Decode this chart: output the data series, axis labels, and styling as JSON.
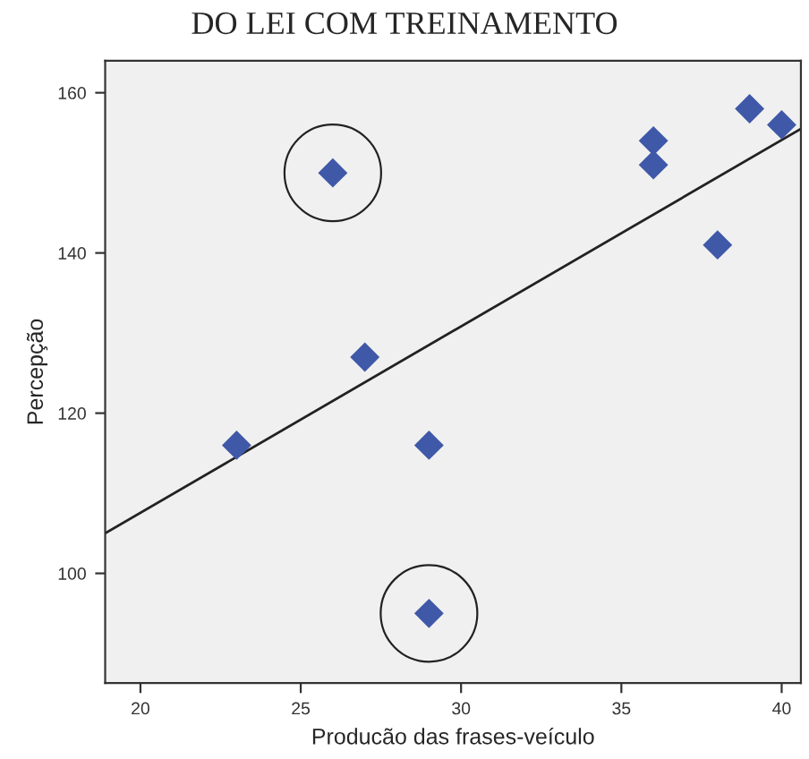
{
  "chart_data": {
    "type": "scatter",
    "title": "DO LEI COM TREINAMENTO",
    "xlabel": "Producão das frases-veículo",
    "ylabel": "Percepção",
    "series": [
      {
        "color": "#3f58a8",
        "marker": "diamond",
        "x": [
          23,
          26,
          27,
          29,
          29,
          36,
          36,
          38,
          39,
          40
        ],
        "values": [
          116,
          150,
          127,
          116,
          95,
          154,
          151,
          141,
          158,
          156
        ]
      },
      {
        "type": "line",
        "color": "#222222",
        "marker": "none",
        "line_style": "solid",
        "x": [
          18.9,
          40.6
        ],
        "values": [
          105,
          155.5
        ]
      }
    ],
    "xlim": [
      18.9,
      40.6
    ],
    "ylim": [
      86.3,
      164
    ],
    "xticks": [
      20,
      25,
      30,
      35,
      40
    ],
    "yticks": [
      100,
      120,
      140,
      160
    ],
    "grid": false,
    "legend": false
  }
}
